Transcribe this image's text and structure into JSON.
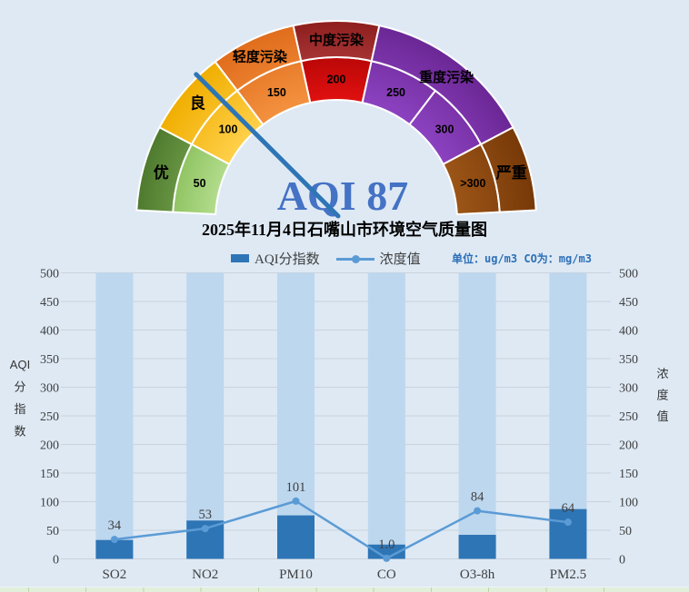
{
  "page": {
    "background": "#dee9f4"
  },
  "title": {
    "text": "2025年11月4日石嘴山市环境空气质量图"
  },
  "legend": {
    "items": [
      {
        "label": "AQI分指数",
        "marker": "bar-swatch",
        "color": "#2e75b6"
      },
      {
        "label": "浓度值",
        "marker": "line-dot-swatch",
        "color": "#5b9bd5"
      }
    ],
    "units_note": "单位：ug/m3  CO为：mg/m3"
  },
  "footer": {
    "strip_color": "#e2efda",
    "divider_color": "#bcd3a6"
  },
  "chart_data": [
    {
      "type": "gauge",
      "name": "aqi-dial",
      "aqi_text": "AQI 87",
      "aqi_value": 87,
      "aqi_text_color": "#4472c4",
      "needle_color": "#2e75b6",
      "units_per_ring_segment": 50,
      "outer_ring": [
        {
          "label": "优",
          "span": 1,
          "color_light": "#82b157",
          "color_dark": "#4e7a2e"
        },
        {
          "label": "良",
          "span": 1,
          "color_light": "#ffd04a",
          "color_dark": "#f0ae00"
        },
        {
          "label": "轻度污染",
          "span": 1,
          "color_light": "#f3913f",
          "color_dark": "#e06d1c"
        },
        {
          "label": "中度污染",
          "span": 1,
          "color_light": "#c24a4a",
          "color_dark": "#8e1f1f"
        },
        {
          "label": "重度污染",
          "span": 2,
          "color_light": "#8c42c0",
          "color_dark": "#6b2795"
        },
        {
          "label": "严重",
          "span": 1,
          "color_light": "#9c5517",
          "color_dark": "#773908"
        }
      ],
      "inner_ring": [
        {
          "label": "50",
          "color_light": "#b2dc8c",
          "color_dark": "#74b041"
        },
        {
          "label": "100",
          "color_light": "#ffd04a",
          "color_dark": "#f0ae00"
        },
        {
          "label": "150",
          "color_light": "#f3913f",
          "color_dark": "#e06d1c"
        },
        {
          "label": "200",
          "color_light": "#e01010",
          "color_dark": "#9c0000"
        },
        {
          "label": "250",
          "color_light": "#8c42c0",
          "color_dark": "#6b2795"
        },
        {
          "label": "300",
          "color_light": "#8c42c0",
          "color_dark": "#6b2795"
        },
        {
          "label": ">300",
          "color_light": "#9c5517",
          "color_dark": "#773908"
        }
      ]
    },
    {
      "type": "bar",
      "name": "aqi-subindex-and-concentration",
      "categories": [
        "SO2",
        "NO2",
        "PM10",
        "CO",
        "O3-8h",
        "PM2.5"
      ],
      "series": [
        {
          "name": "AQI分指数",
          "type": "bar",
          "color": "#2e75b6",
          "values": [
            33,
            67,
            76,
            25,
            42,
            87
          ]
        },
        {
          "name": "浓度值",
          "type": "line",
          "color": "#5b9bd5",
          "values": [
            34,
            53,
            101,
            1.0,
            84,
            64
          ],
          "labels": [
            "34",
            "53",
            "101",
            "1.0",
            "84",
            "64"
          ]
        }
      ],
      "ylabel_left": "AQI分指数",
      "ylabel_right": "浓度值",
      "ylim": [
        0,
        500
      ],
      "ytick_step": 50,
      "grid": true,
      "background_columns": {
        "color": "#bdd7ee",
        "top_value": 500
      },
      "tick_color": "#404040",
      "grid_color": "#cbd2da",
      "label_color": "#3f3f3f"
    }
  ]
}
